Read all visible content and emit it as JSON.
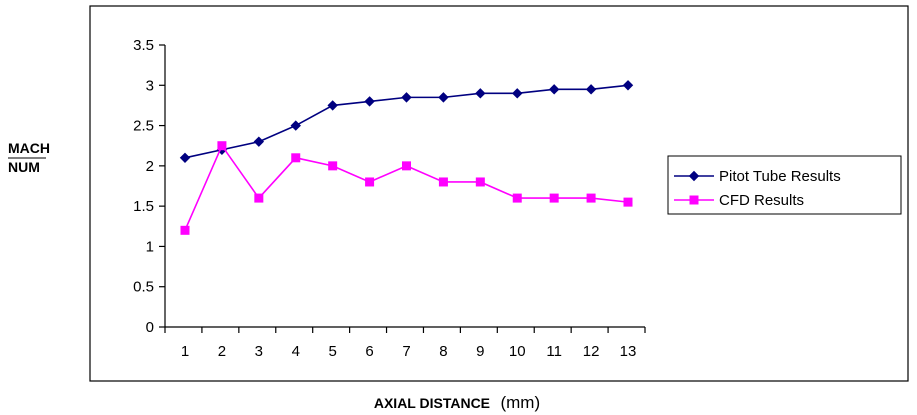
{
  "chart_data": {
    "type": "line",
    "title": "",
    "ylabel_lines": [
      "MACH",
      "NUM"
    ],
    "xlabel": "AXIAL DISTANCE",
    "xlabel_unit": "(mm)",
    "categories": [
      "1",
      "2",
      "3",
      "4",
      "5",
      "6",
      "7",
      "8",
      "9",
      "10",
      "11",
      "12",
      "13"
    ],
    "y_ticks": [
      "0",
      "0.5",
      "1",
      "1.5",
      "2",
      "2.5",
      "3",
      "3.5"
    ],
    "ylim": [
      0,
      3.5
    ],
    "grid": false,
    "legend_position": "right",
    "series": [
      {
        "name": "Pitot Tube Results",
        "color": "#000080",
        "marker": "diamond",
        "values": [
          2.1,
          2.2,
          2.3,
          2.5,
          2.75,
          2.8,
          2.85,
          2.85,
          2.9,
          2.9,
          2.95,
          2.95,
          3.0
        ]
      },
      {
        "name": "CFD Results",
        "color": "#ff00ff",
        "marker": "square",
        "values": [
          1.2,
          2.25,
          1.6,
          2.1,
          2.0,
          1.8,
          2.0,
          1.8,
          1.8,
          1.6,
          1.6,
          1.6,
          1.55
        ]
      }
    ]
  }
}
